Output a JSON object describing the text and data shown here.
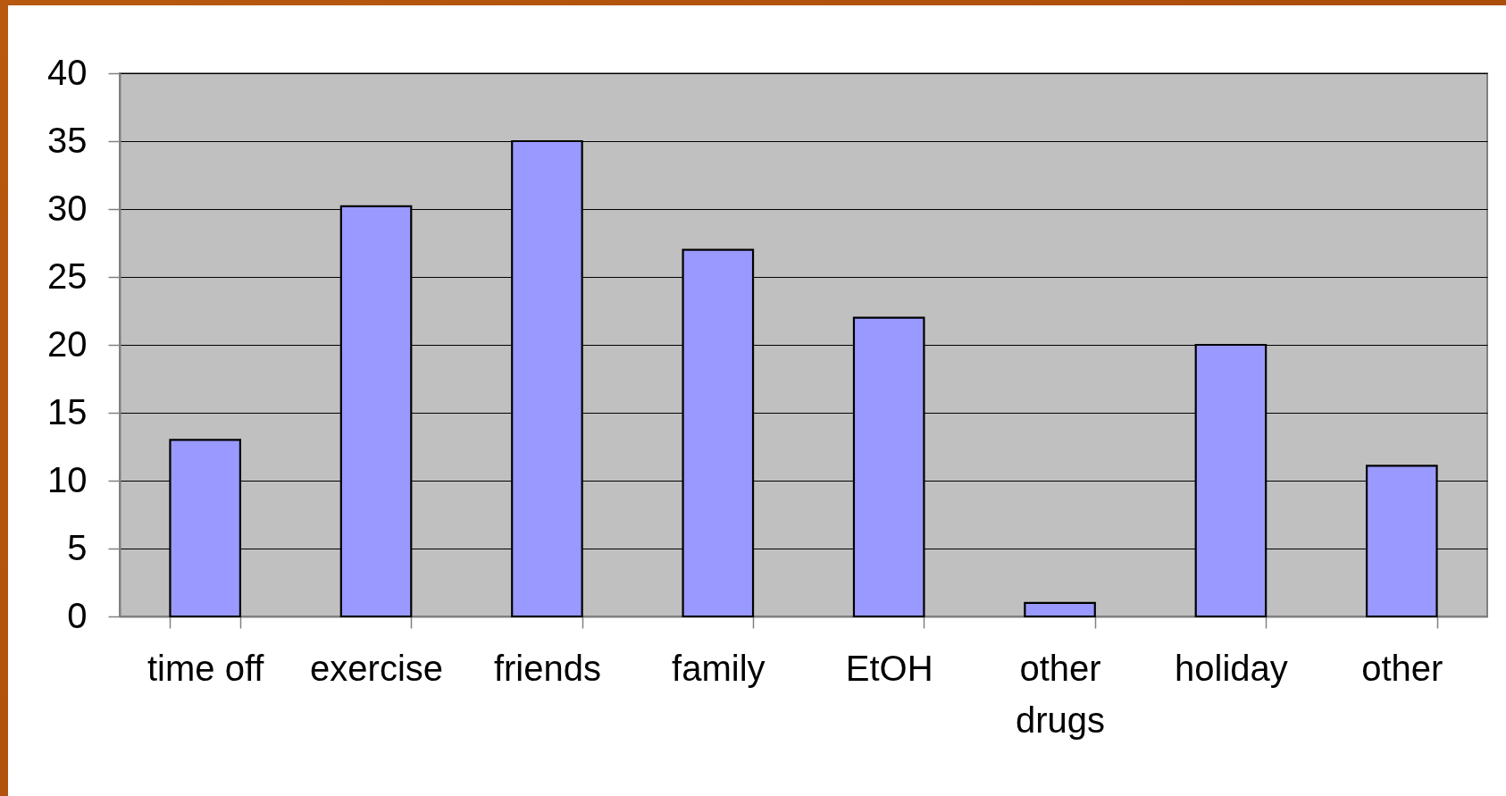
{
  "chart_data": {
    "type": "bar",
    "categories": [
      "time off",
      "exercise",
      "friends",
      "family",
      "EtOH",
      "other drugs",
      "holiday",
      "other"
    ],
    "values": [
      13,
      30.2,
      35,
      27,
      22,
      1,
      20,
      11.1
    ],
    "color": "#9999ff",
    "ylim": [
      0,
      40
    ],
    "yticks": [
      0,
      5,
      10,
      15,
      20,
      25,
      30,
      35,
      40
    ],
    "grid": "y"
  }
}
